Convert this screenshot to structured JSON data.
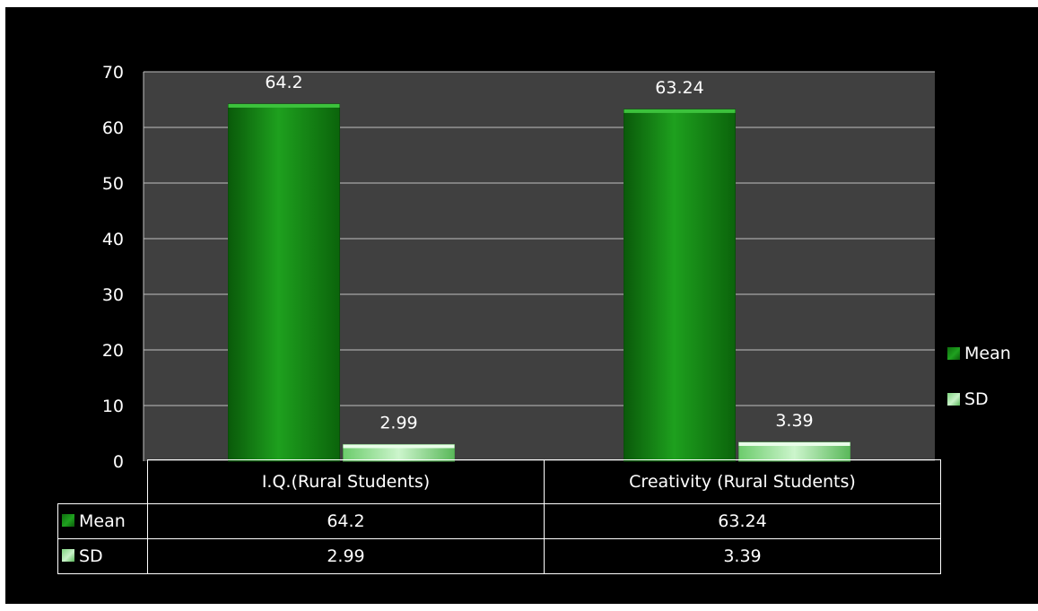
{
  "chart_data": {
    "type": "bar",
    "categories": [
      "I.Q.(Rural Students)",
      "Creativity (Rural Students)"
    ],
    "series": [
      {
        "name": "Mean",
        "values": [
          64.2,
          63.24
        ],
        "color": "#128a12"
      },
      {
        "name": "SD",
        "values": [
          2.99,
          3.39
        ],
        "color": "#a6e8a6"
      }
    ],
    "data_labels": {
      "Mean": [
        "64.2",
        "63.24"
      ],
      "SD": [
        "2.99",
        "3.39"
      ]
    },
    "y_ticks": [
      "0",
      "10",
      "20",
      "30",
      "40",
      "50",
      "60",
      "70"
    ],
    "ylim": [
      0,
      70
    ],
    "grid": true,
    "legend_position": "right",
    "plot_background": "#404040",
    "page_background": "#000000",
    "data_table": {
      "rows": [
        {
          "label": "Mean",
          "values": [
            "64.2",
            "63.24"
          ]
        },
        {
          "label": "SD",
          "values": [
            "2.99",
            "3.39"
          ]
        }
      ]
    }
  }
}
